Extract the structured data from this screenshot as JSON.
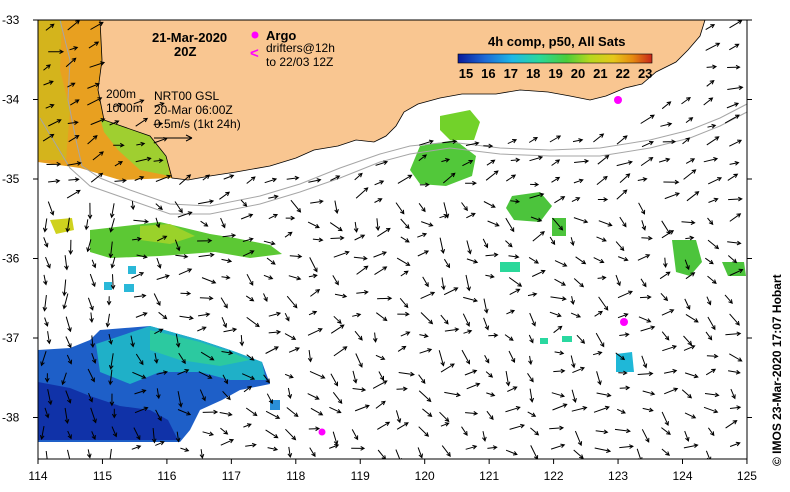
{
  "header": {
    "date": "21-Mar-2020",
    "hour": "20Z",
    "argo_label": "Argo",
    "drifter_symbol": "<",
    "drifter_line1": "drifters@12h",
    "drifter_line2": "to 22/03 12Z"
  },
  "legend": {
    "title": "4h comp, p50, All Sats",
    "ticks": [
      "15",
      "16",
      "17",
      "18",
      "19",
      "20",
      "21",
      "22",
      "23"
    ]
  },
  "notes": {
    "depth_200": "200m",
    "depth_1000": "1000m",
    "product": "NRT00 GSL",
    "product_date": "20-Mar 06:00Z",
    "scale": "0.5m/s (1kt 24h)"
  },
  "axes": {
    "x_ticks": [
      "114",
      "115",
      "116",
      "117",
      "118",
      "119",
      "120",
      "121",
      "122",
      "123",
      "124",
      "125"
    ],
    "y_ticks": [
      "-33",
      "-34",
      "-35",
      "-36",
      "-37",
      "-38"
    ]
  },
  "credit": "© IMOS 23-Mar-2020 17:07 Hobart",
  "colors": {
    "land": "#f9c691",
    "argo": "#ff00ff",
    "isobath": "#a6a6a6",
    "sst_ramp": [
      "#0a1a9a",
      "#1e6ad6",
      "#1fb8e6",
      "#2ad89a",
      "#4ccd3a",
      "#b6d81e",
      "#e6c81a",
      "#e68a10",
      "#c8261a"
    ]
  }
}
